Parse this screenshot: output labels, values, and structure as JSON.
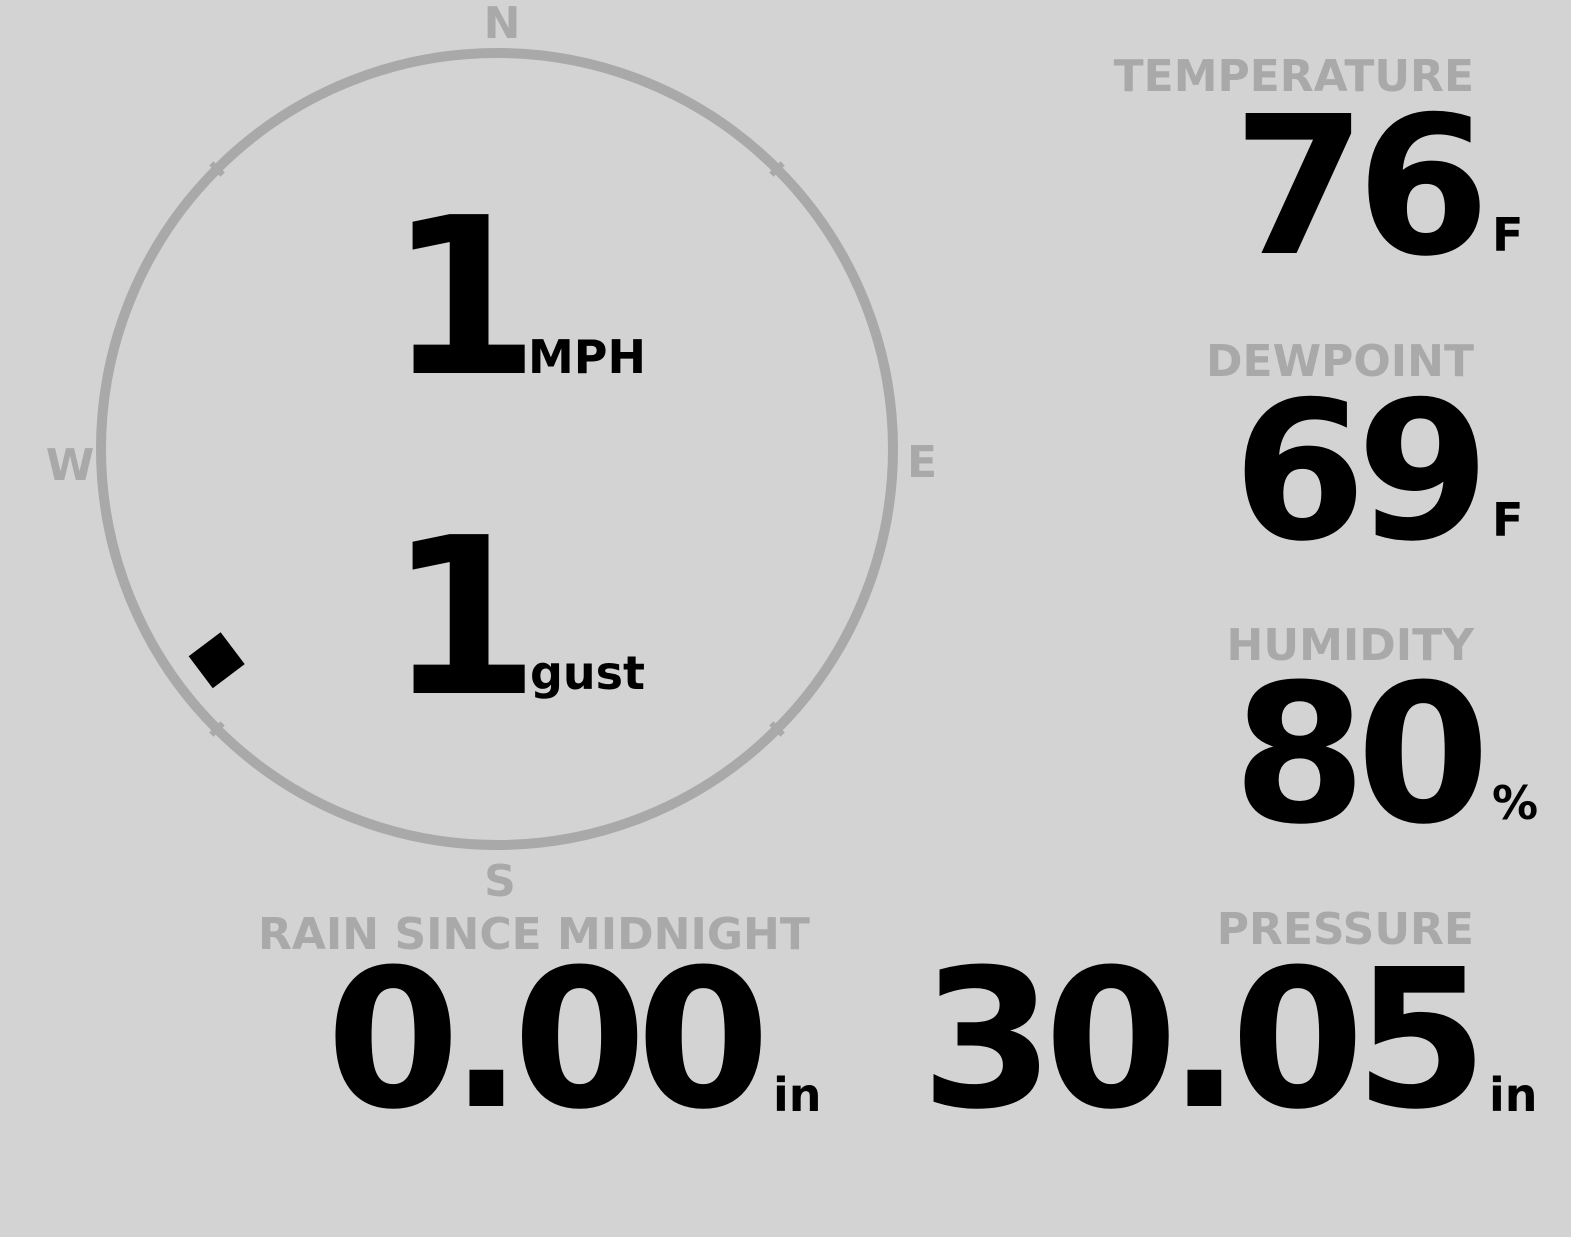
{
  "compass": {
    "north": "N",
    "east": "E",
    "south": "S",
    "west": "W",
    "wind_direction_degrees": 233,
    "ring_color": "#a9a9a9"
  },
  "wind": {
    "speed": "1",
    "speed_unit": "MPH",
    "gust": "1",
    "gust_unit": "gust"
  },
  "temperature": {
    "label": "TEMPERATURE",
    "value": "76",
    "unit": "F"
  },
  "dewpoint": {
    "label": "DEWPOINT",
    "value": "69",
    "unit": "F"
  },
  "humidity": {
    "label": "HUMIDITY",
    "value": "80",
    "unit": "%"
  },
  "rain": {
    "label": "RAIN SINCE MIDNIGHT",
    "value": "0.00",
    "unit": "in"
  },
  "pressure": {
    "label": "PRESSURE",
    "value": "30.05",
    "unit": "in"
  },
  "colors": {
    "background": "#d3d3d3",
    "label": "#a9a9a9",
    "value": "#000000"
  }
}
